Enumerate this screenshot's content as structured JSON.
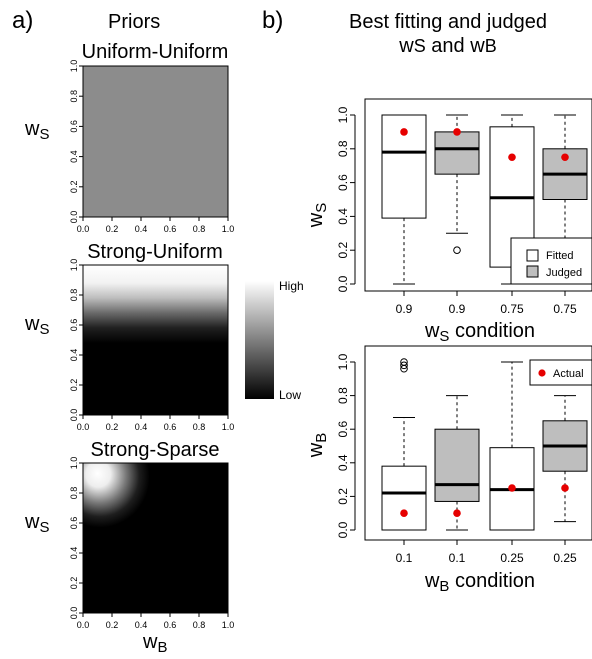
{
  "panel_a": {
    "label": "a)",
    "title": "Priors",
    "xlabel_main": "w",
    "xlabel_sub": "B",
    "ylabel_main": "w",
    "ylabel_sub": "S"
  },
  "panel_b": {
    "label": "b)",
    "title_line1": "Best fitting and judged",
    "title_line2_w1": "w",
    "title_line2_s1": "S",
    "title_line2_mid": " and ",
    "title_line2_w2": "w",
    "title_line2_s2": "B"
  },
  "colorbar": {
    "high": "High",
    "low": "Low"
  },
  "legend": {
    "fitted": "Fitted",
    "judged": "Judged",
    "actual": "Actual"
  },
  "colors": {
    "fitted_fill": "#ffffff",
    "judged_fill": "#bebebe",
    "actual_point": "#e60000",
    "uniform_gray": "#8c8c8c"
  },
  "chart_data": [
    {
      "type": "heatmap",
      "title": "Uniform-Uniform",
      "x_ticks": [
        "0.0",
        "0.2",
        "0.4",
        "0.6",
        "0.8",
        "1.0"
      ],
      "y_ticks": [
        "0.0",
        "0.2",
        "0.4",
        "0.6",
        "0.8",
        "1.0"
      ],
      "xlim": [
        0,
        1
      ],
      "ylim": [
        0,
        1
      ],
      "density": "uniform"
    },
    {
      "type": "heatmap",
      "title": "Strong-Uniform",
      "x_ticks": [
        "0.0",
        "0.2",
        "0.4",
        "0.6",
        "0.8",
        "1.0"
      ],
      "y_ticks": [
        "0.0",
        "0.2",
        "0.4",
        "0.6",
        "0.8",
        "1.0"
      ],
      "xlim": [
        0,
        1
      ],
      "ylim": [
        0,
        1
      ],
      "density": "high near wS = 1, uniform in wB"
    },
    {
      "type": "heatmap",
      "title": "Strong-Sparse",
      "x_ticks": [
        "0.0",
        "0.2",
        "0.4",
        "0.6",
        "0.8",
        "1.0"
      ],
      "y_ticks": [
        "0.0",
        "0.2",
        "0.4",
        "0.6",
        "0.8",
        "1.0"
      ],
      "xlim": [
        0,
        1
      ],
      "ylim": [
        0,
        1
      ],
      "density": "high near wS = 1, wB = 0"
    },
    {
      "type": "boxplot",
      "ylabel_main": "w",
      "ylabel_sub": "S",
      "xlabel_main": "w",
      "xlabel_sub": "S",
      "xlabel_rest": " condition",
      "categories": [
        "0.9",
        "0.9",
        "0.75",
        "0.75"
      ],
      "ylim": [
        0,
        1
      ],
      "y_ticks": [
        "0.0",
        "0.2",
        "0.4",
        "0.6",
        "0.8",
        "1.0"
      ],
      "boxes": [
        {
          "group": "Fitted",
          "min": 0.0,
          "q1": 0.39,
          "median": 0.78,
          "q3": 1.0,
          "max": 1.0,
          "outliers": [],
          "actual": 0.9
        },
        {
          "group": "Judged",
          "min": 0.3,
          "q1": 0.65,
          "median": 0.8,
          "q3": 0.9,
          "max": 1.0,
          "outliers": [
            0.2
          ],
          "actual": 0.9
        },
        {
          "group": "Fitted",
          "min": 0.0,
          "q1": 0.1,
          "median": 0.51,
          "q3": 0.93,
          "max": 1.0,
          "outliers": [],
          "actual": 0.75
        },
        {
          "group": "Judged",
          "min": 0.25,
          "q1": 0.5,
          "median": 0.65,
          "q3": 0.8,
          "max": 1.0,
          "outliers": [],
          "actual": 0.75
        }
      ]
    },
    {
      "type": "boxplot",
      "ylabel_main": "w",
      "ylabel_sub": "B",
      "xlabel_main": "w",
      "xlabel_sub": "B",
      "xlabel_rest": " condition",
      "categories": [
        "0.1",
        "0.1",
        "0.25",
        "0.25"
      ],
      "ylim": [
        0,
        1
      ],
      "y_ticks": [
        "0.0",
        "0.2",
        "0.4",
        "0.6",
        "0.8",
        "1.0"
      ],
      "boxes": [
        {
          "group": "Fitted",
          "min": 0.0,
          "q1": 0.0,
          "median": 0.22,
          "q3": 0.38,
          "max": 0.67,
          "outliers": [
            0.96,
            0.98,
            1.0
          ],
          "actual": 0.1
        },
        {
          "group": "Judged",
          "min": 0.0,
          "q1": 0.17,
          "median": 0.27,
          "q3": 0.6,
          "max": 0.8,
          "outliers": [],
          "actual": 0.1
        },
        {
          "group": "Fitted",
          "min": 0.0,
          "q1": 0.0,
          "median": 0.24,
          "q3": 0.49,
          "max": 1.0,
          "outliers": [],
          "actual": 0.25
        },
        {
          "group": "Judged",
          "min": 0.05,
          "q1": 0.35,
          "median": 0.5,
          "q3": 0.65,
          "max": 0.8,
          "outliers": [],
          "actual": 0.25
        }
      ]
    }
  ]
}
